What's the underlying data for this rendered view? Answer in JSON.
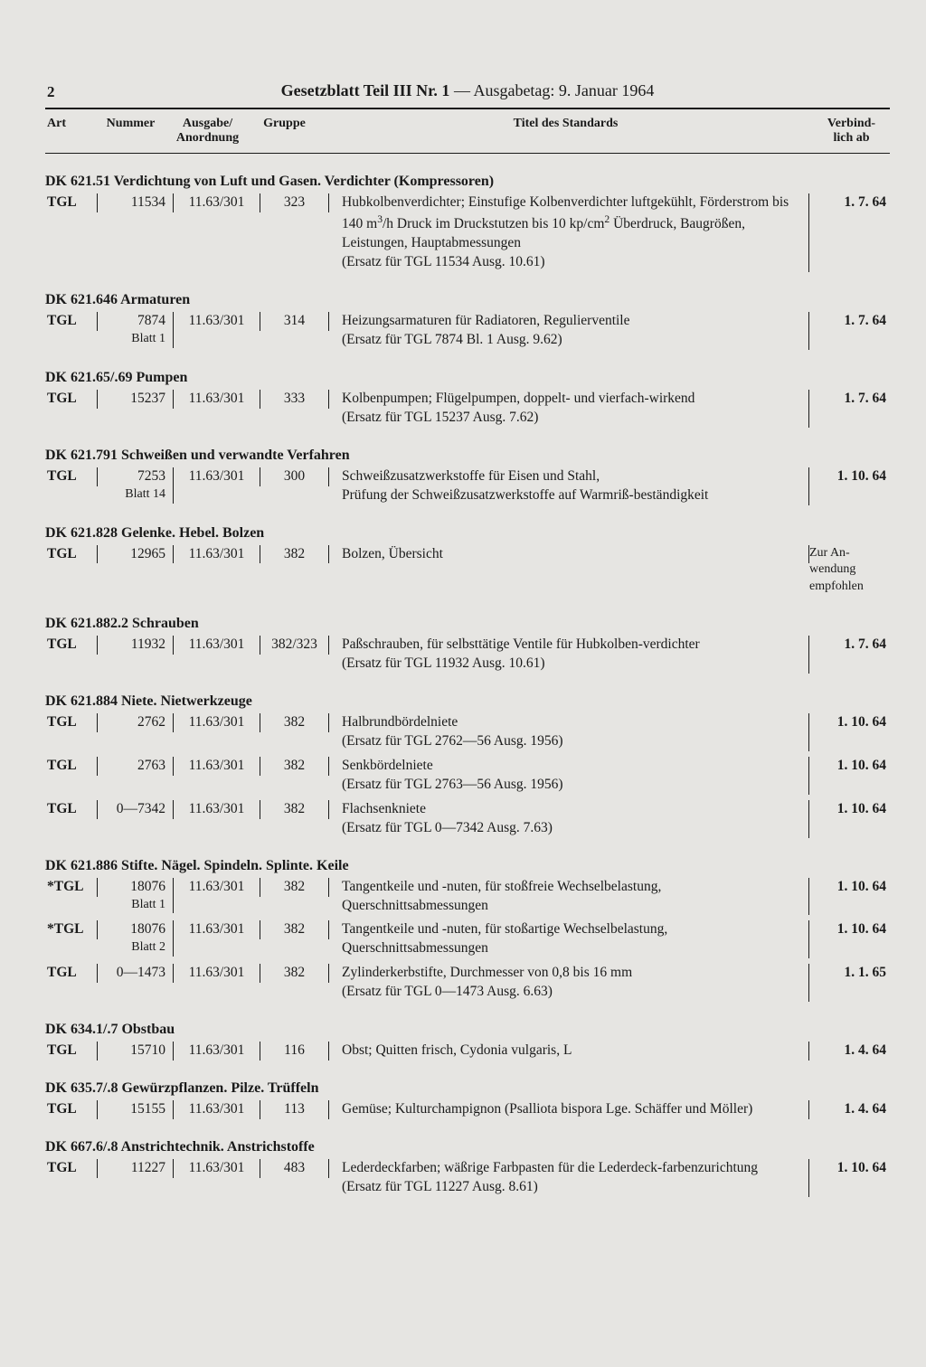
{
  "page_number": "2",
  "header": {
    "bold": "Gesetzblatt Teil III Nr. 1",
    "sep": " — Ausgabetag: 9. Januar 1964"
  },
  "columns": {
    "art": "Art",
    "nummer": "Nummer",
    "ausgabe_l1": "Ausgabe/",
    "ausgabe_l2": "Anordnung",
    "gruppe": "Gruppe",
    "titel": "Titel des Standards",
    "verbind_l1": "Verbind-",
    "verbind_l2": "lich ab"
  },
  "sections": [
    {
      "heading": "DK 621.51 Verdichtung von Luft und Gasen. Verdichter (Kompressoren)",
      "rows": [
        {
          "art": "TGL",
          "num": "11534",
          "blatt": "",
          "ausg": "11.63/301",
          "gruppe": "323",
          "titel_html": "Hubkolbenverdichter; Einstufige Kolbenverdichter luftgekühlt, Förderstrom bis 140 m<span class='sup'>3</span>/h Druck im Druckstutzen bis 10 kp/cm<span class='sup'>2</span> Überdruck, Baugrößen, Leistungen, Hauptabmessungen<br>(Ersatz für TGL 11534 Ausg. 10.61)",
          "verb": "1.  7. 64"
        }
      ]
    },
    {
      "heading": "DK 621.646 Armaturen",
      "rows": [
        {
          "art": "TGL",
          "num": "7874",
          "blatt": "Blatt 1",
          "ausg": "11.63/301",
          "gruppe": "314",
          "titel_html": "Heizungsarmaturen für Radiatoren, Regulierventile<br>(Ersatz für TGL 7874 Bl. 1 Ausg. 9.62)",
          "verb": "1.  7. 64"
        }
      ]
    },
    {
      "heading": "DK 621.65/.69 Pumpen",
      "rows": [
        {
          "art": "TGL",
          "num": "15237",
          "blatt": "",
          "ausg": "11.63/301",
          "gruppe": "333",
          "titel_html": "Kolbenpumpen; Flügelpumpen, doppelt- und vierfach-wirkend<br>(Ersatz für TGL 15237 Ausg. 7.62)",
          "verb": "1.  7. 64"
        }
      ]
    },
    {
      "heading": "DK 621.791 Schweißen und verwandte Verfahren",
      "rows": [
        {
          "art": "TGL",
          "num": "7253",
          "blatt": "Blatt 14",
          "ausg": "11.63/301",
          "gruppe": "300",
          "titel_html": "Schweißzusatzwerkstoffe für Eisen und Stahl,<br>Prüfung der Schweißzusatzwerkstoffe auf Warmriß-beständigkeit",
          "verb": "1. 10. 64"
        }
      ]
    },
    {
      "heading": "DK 621.828 Gelenke. Hebel. Bolzen",
      "rows": [
        {
          "art": "TGL",
          "num": "12965",
          "blatt": "",
          "ausg": "11.63/301",
          "gruppe": "382",
          "titel_html": "Bolzen, Übersicht",
          "verb_html": "Zur An-<br>wendung<br>empfohlen",
          "verb_plain": true
        }
      ]
    },
    {
      "heading": "DK 621.882.2 Schrauben",
      "rows": [
        {
          "art": "TGL",
          "num": "11932",
          "blatt": "",
          "ausg": "11.63/301",
          "gruppe": "382/323",
          "titel_html": "Paßschrauben, für selbsttätige Ventile für Hubkolben-verdichter<br>(Ersatz für TGL 11932 Ausg. 10.61)",
          "verb": "1.  7. 64"
        }
      ]
    },
    {
      "heading": "DK 621.884 Niete. Nietwerkzeuge",
      "rows": [
        {
          "art": "TGL",
          "num": "2762",
          "blatt": "",
          "ausg": "11.63/301",
          "gruppe": "382",
          "titel_html": "Halbrundbördelniete<br>(Ersatz für TGL 2762—56 Ausg. 1956)",
          "verb": "1. 10. 64"
        },
        {
          "art": "TGL",
          "num": "2763",
          "blatt": "",
          "ausg": "11.63/301",
          "gruppe": "382",
          "titel_html": "Senkbördelniete<br>(Ersatz für TGL 2763—56 Ausg. 1956)",
          "verb": "1. 10. 64"
        },
        {
          "art": "TGL",
          "num": "0—7342",
          "blatt": "",
          "ausg": "11.63/301",
          "gruppe": "382",
          "titel_html": "Flachsenkniete<br>(Ersatz für TGL 0—7342 Ausg. 7.63)",
          "verb": "1. 10. 64"
        }
      ]
    },
    {
      "heading": "DK 621.886 Stifte. Nägel. Spindeln. Splinte. Keile",
      "rows": [
        {
          "art": "*TGL",
          "num": "18076",
          "blatt": "Blatt 1",
          "ausg": "11.63/301",
          "gruppe": "382",
          "titel_html": "Tangentkeile und -nuten, für stoßfreie Wechselbelastung, Querschnittsabmessungen",
          "verb": "1. 10. 64"
        },
        {
          "art": "*TGL",
          "num": "18076",
          "blatt": "Blatt 2",
          "ausg": "11.63/301",
          "gruppe": "382",
          "titel_html": "Tangentkeile und -nuten, für stoßartige Wechselbelastung, Querschnittsabmessungen",
          "verb": "1. 10. 64"
        },
        {
          "art": "TGL",
          "num": "0—1473",
          "blatt": "",
          "ausg": "11.63/301",
          "gruppe": "382",
          "titel_html": "Zylinderkerbstifte, Durchmesser von 0,8 bis 16 mm<br>(Ersatz für TGL 0—1473 Ausg. 6.63)",
          "verb": "1.  1. 65"
        }
      ]
    },
    {
      "heading": "DK 634.1/.7 Obstbau",
      "rows": [
        {
          "art": "TGL",
          "num": "15710",
          "blatt": "",
          "ausg": "11.63/301",
          "gruppe": "116",
          "titel_html": "Obst; Quitten frisch, Cydonia vulgaris, L",
          "verb": "1.  4. 64"
        }
      ]
    },
    {
      "heading": "DK 635.7/.8 Gewürzpflanzen. Pilze. Trüffeln",
      "rows": [
        {
          "art": "TGL",
          "num": "15155",
          "blatt": "",
          "ausg": "11.63/301",
          "gruppe": "113",
          "titel_html": "Gemüse; Kulturchampignon (Psalliota bispora Lge. Schäffer und Möller)",
          "verb": "1.  4. 64"
        }
      ]
    },
    {
      "heading": "DK 667.6/.8 Anstrichtechnik. Anstrichstoffe",
      "rows": [
        {
          "art": "TGL",
          "num": "11227",
          "blatt": "",
          "ausg": "11.63/301",
          "gruppe": "483",
          "titel_html": "Lederdeckfarben; wäßrige Farbpasten für die Lederdeck-farbenzurichtung<br>(Ersatz für TGL 11227 Ausg. 8.61)",
          "verb": "1. 10. 64"
        }
      ]
    }
  ]
}
